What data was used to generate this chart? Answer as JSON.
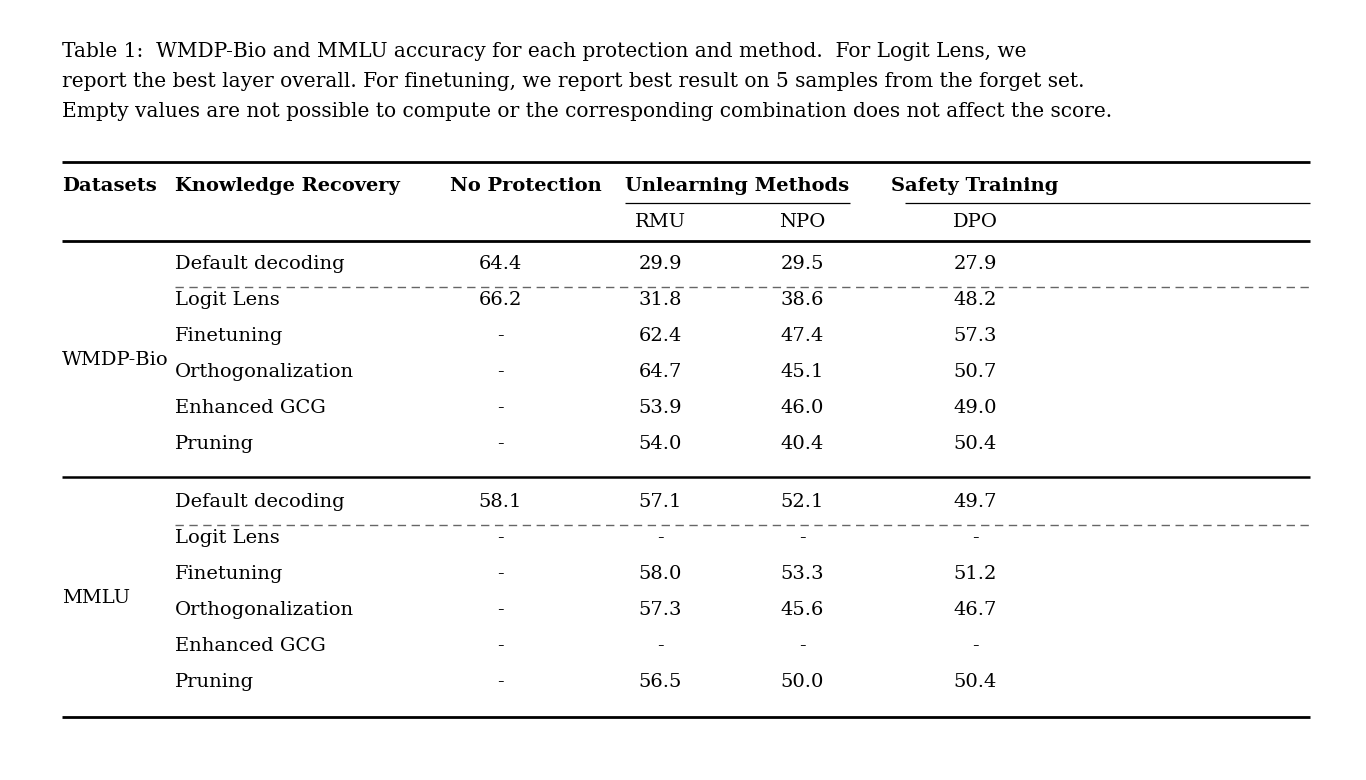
{
  "caption_parts": [
    "Table 1:  WMDP-Bio and MMLU accuracy for each protection and method.  For Logit Lens, we",
    "report the best layer overall. For finetuning, we report best result on 5 samples from the forget set.",
    "Empty values are not possible to compute or the corresponding combination does not affect the score."
  ],
  "wmdp_rows": [
    [
      "Default decoding",
      "64.4",
      "29.9",
      "29.5",
      "27.9"
    ],
    [
      "Logit Lens",
      "66.2",
      "31.8",
      "38.6",
      "48.2"
    ],
    [
      "Finetuning",
      "-",
      "62.4",
      "47.4",
      "57.3"
    ],
    [
      "Orthogonalization",
      "-",
      "64.7",
      "45.1",
      "50.7"
    ],
    [
      "Enhanced GCG",
      "-",
      "53.9",
      "46.0",
      "49.0"
    ],
    [
      "Pruning",
      "-",
      "54.0",
      "40.4",
      "50.4"
    ]
  ],
  "mmlu_rows": [
    [
      "Default decoding",
      "58.1",
      "57.1",
      "52.1",
      "49.7"
    ],
    [
      "Logit Lens",
      "-",
      "-",
      "-",
      "-"
    ],
    [
      "Finetuning",
      "-",
      "58.0",
      "53.3",
      "51.2"
    ],
    [
      "Orthogonalization",
      "-",
      "57.3",
      "45.6",
      "46.7"
    ],
    [
      "Enhanced GCG",
      "-",
      "-",
      "-",
      "-"
    ],
    [
      "Pruning",
      "-",
      "56.5",
      "50.0",
      "50.4"
    ]
  ],
  "bg_color": "#ffffff",
  "text_color": "#000000",
  "font_family": "DejaVu Serif",
  "font_size_caption": 14.5,
  "font_size_header": 14.0,
  "font_size_body": 14.0,
  "fig_width": 13.66,
  "fig_height": 7.8,
  "dpi": 100
}
